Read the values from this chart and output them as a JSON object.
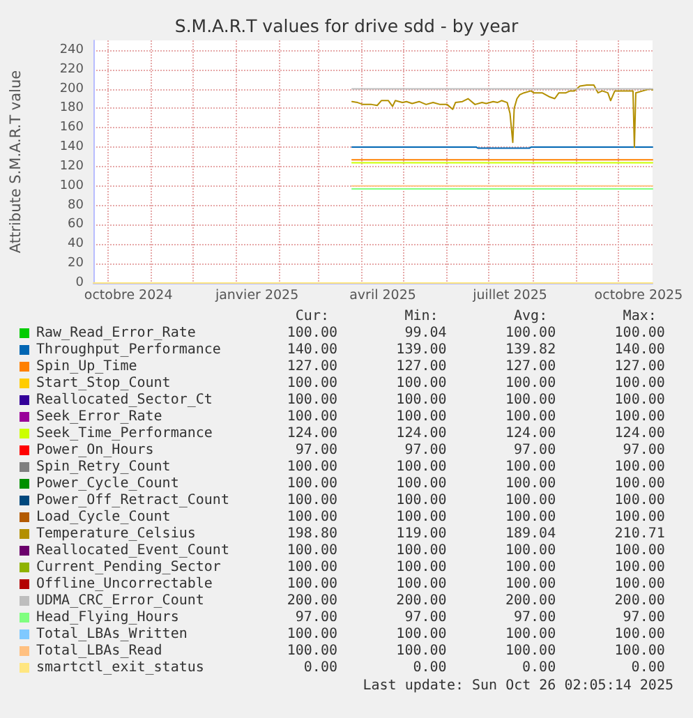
{
  "chart_data": {
    "type": "line",
    "title": "S.M.A.R.T values for drive sdd - by year",
    "ylabel": "Attribute S.M.A.R.T value",
    "xlim": [
      "2024-09-21",
      "2025-10-26"
    ],
    "xticks": [
      {
        "value": "2024-10-01",
        "label": null
      },
      {
        "value": "2024-10-16",
        "label": "octobre 2024"
      },
      {
        "value": "2024-11-01",
        "label": null
      },
      {
        "value": "2024-12-01",
        "label": null
      },
      {
        "value": "2025-01-01",
        "label": null
      },
      {
        "value": "2025-01-16",
        "label": "janvier 2025"
      },
      {
        "value": "2025-02-01",
        "label": null
      },
      {
        "value": "2025-03-01",
        "label": null
      },
      {
        "value": "2025-04-01",
        "label": null
      },
      {
        "value": "2025-04-16",
        "label": "avril 2025"
      },
      {
        "value": "2025-05-01",
        "label": null
      },
      {
        "value": "2025-06-01",
        "label": null
      },
      {
        "value": "2025-07-01",
        "label": null
      },
      {
        "value": "2025-07-16",
        "label": "juillet 2025"
      },
      {
        "value": "2025-08-01",
        "label": null
      },
      {
        "value": "2025-09-01",
        "label": null
      },
      {
        "value": "2025-10-01",
        "label": null
      },
      {
        "value": "2025-10-16",
        "label": "octobre 2025"
      }
    ],
    "ylim": [
      0,
      250
    ],
    "yticks": [
      0,
      20,
      40,
      60,
      80,
      100,
      120,
      140,
      160,
      180,
      200,
      220,
      240
    ],
    "grid": true,
    "legend": "bottom",
    "marker": "none",
    "x": [
      "2025-03-25",
      "2025-10-26"
    ],
    "series": [
      {
        "name": "Raw_Read_Error_Rate",
        "color": "#00cc00",
        "values": [
          null,
          null
        ]
      },
      {
        "name": "Throughput_Performance",
        "color": "#0066b3",
        "x": [
          "2025-03-25",
          "2025-06-22",
          "2025-06-23",
          "2025-07-30",
          "2025-07-31",
          "2025-10-26"
        ],
        "values": [
          140,
          140,
          139,
          139,
          140,
          140
        ]
      },
      {
        "name": "Spin_Up_Time",
        "color": "#ff8000",
        "values": [
          127,
          127
        ]
      },
      {
        "name": "Start_Stop_Count",
        "color": "#ffcc00",
        "values": [
          null,
          null
        ]
      },
      {
        "name": "Reallocated_Sector_Ct",
        "color": "#330099",
        "values": [
          null,
          null
        ]
      },
      {
        "name": "Seek_Error_Rate",
        "color": "#990099",
        "values": [
          null,
          null
        ]
      },
      {
        "name": "Seek_Time_Performance",
        "color": "#ccff00",
        "values": [
          124,
          124
        ]
      },
      {
        "name": "Power_On_Hours",
        "color": "#ff0000",
        "values": [
          null,
          null
        ]
      },
      {
        "name": "Spin_Retry_Count",
        "color": "#808080",
        "values": [
          null,
          null
        ]
      },
      {
        "name": "Power_Cycle_Count",
        "color": "#008f00",
        "values": [
          null,
          null
        ]
      },
      {
        "name": "Power_Off_Retract_Count",
        "color": "#00487d",
        "values": [
          null,
          null
        ]
      },
      {
        "name": "Load_Cycle_Count",
        "color": "#b35a00",
        "values": [
          null,
          null
        ]
      },
      {
        "name": "Temperature_Celsius",
        "color": "#b38f00",
        "x": [
          "2025-03-25",
          "2025-03-29",
          "2025-04-02",
          "2025-04-08",
          "2025-04-12",
          "2025-04-15",
          "2025-04-20",
          "2025-04-23",
          "2025-04-25",
          "2025-04-30",
          "2025-05-03",
          "2025-05-07",
          "2025-05-12",
          "2025-05-17",
          "2025-05-22",
          "2025-05-27",
          "2025-06-01",
          "2025-06-05",
          "2025-06-07",
          "2025-06-12",
          "2025-06-16",
          "2025-06-21",
          "2025-06-26",
          "2025-06-29",
          "2025-07-04",
          "2025-07-07",
          "2025-07-10",
          "2025-07-14",
          "2025-07-16",
          "2025-07-18",
          "2025-07-19",
          "2025-07-21",
          "2025-07-23",
          "2025-07-26",
          "2025-07-31",
          "2025-08-02",
          "2025-08-05",
          "2025-08-08",
          "2025-08-13",
          "2025-08-17",
          "2025-08-20",
          "2025-08-25",
          "2025-08-28",
          "2025-08-31",
          "2025-09-04",
          "2025-09-09",
          "2025-09-14",
          "2025-09-17",
          "2025-09-20",
          "2025-09-24",
          "2025-09-26",
          "2025-09-29",
          "2025-10-04",
          "2025-10-07",
          "2025-10-12",
          "2025-10-13",
          "2025-10-14",
          "2025-10-19",
          "2025-10-24",
          "2025-10-26"
        ],
        "values": [
          187,
          186,
          184,
          184,
          183,
          188,
          188,
          182,
          188,
          186,
          187,
          185,
          187,
          184,
          186,
          184,
          184,
          179,
          186,
          187,
          190,
          184,
          186,
          185,
          187,
          186,
          188,
          186,
          175,
          145,
          180,
          190,
          194,
          196,
          198,
          196,
          196,
          196,
          192,
          190,
          196,
          196,
          198,
          198,
          203,
          204,
          204,
          196,
          198,
          196,
          188,
          198,
          198,
          198,
          198,
          140,
          196,
          198,
          200,
          199
        ]
      },
      {
        "name": "Reallocated_Event_Count",
        "color": "#6b006b",
        "values": [
          null,
          null
        ]
      },
      {
        "name": "Current_Pending_Sector",
        "color": "#8fb300",
        "values": [
          null,
          null
        ]
      },
      {
        "name": "Offline_Uncorrectable",
        "color": "#b30000",
        "values": [
          null,
          null
        ]
      },
      {
        "name": "UDMA_CRC_Error_Count",
        "color": "#bebebe",
        "values": [
          200,
          200
        ]
      },
      {
        "name": "Head_Flying_Hours",
        "color": "#80ff80",
        "values": [
          97,
          97
        ]
      },
      {
        "name": "Total_LBAs_Written",
        "color": "#80c9ff",
        "values": [
          null,
          null
        ]
      },
      {
        "name": "Total_LBAs_Read",
        "color": "#ffc080",
        "values": [
          100,
          100
        ]
      },
      {
        "name": "smartctl_exit_status",
        "color": "#ffe680",
        "x": [
          "2024-09-21",
          "2025-10-26"
        ],
        "values": [
          0,
          0
        ]
      }
    ],
    "annotations": [
      "Cur:",
      "Min:",
      "Avg:",
      "Max:",
      "100.00",
      "99.04",
      "100.00",
      "100.00",
      "140.00",
      "139.00",
      "139.82",
      "140.00",
      "127.00",
      "127.00",
      "127.00",
      "127.00",
      "100.00",
      "100.00",
      "100.00",
      "100.00",
      "100.00",
      "100.00",
      "100.00",
      "100.00",
      "100.00",
      "100.00",
      "100.00",
      "100.00",
      "124.00",
      "124.00",
      "124.00",
      "124.00",
      "97.00",
      "97.00",
      "97.00",
      "97.00",
      "100.00",
      "100.00",
      "100.00",
      "100.00",
      "100.00",
      "100.00",
      "100.00",
      "100.00",
      "100.00",
      "100.00",
      "100.00",
      "100.00",
      "100.00",
      "100.00",
      "100.00",
      "100.00",
      "198.80",
      "119.00",
      "189.04",
      "210.71",
      "100.00",
      "100.00",
      "100.00",
      "100.00",
      "100.00",
      "100.00",
      "100.00",
      "100.00",
      "100.00",
      "100.00",
      "100.00",
      "100.00",
      "200.00",
      "200.00",
      "200.00",
      "200.00",
      "97.00",
      "97.00",
      "97.00",
      "97.00",
      "100.00",
      "100.00",
      "100.00",
      "100.00",
      "100.00",
      "100.00",
      "100.00",
      "100.00",
      "0.00",
      "0.00",
      "0.00",
      "0.00",
      "Last update: Sun Oct 26 02:05:14 2025"
    ]
  }
}
